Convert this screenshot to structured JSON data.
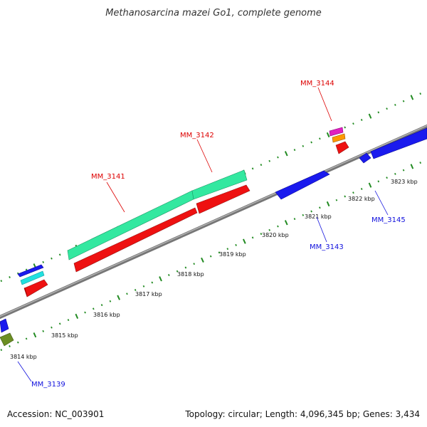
{
  "title": "Methanosarcina mazei Go1, complete genome",
  "footer": {
    "accession": "Accession: NC_003901",
    "summary": "Topology: circular; Length: 4,096,345 bp; Genes: 3,434"
  },
  "scale_labels": [
    "3814 kbp",
    "3815 kbp",
    "3816 kbp",
    "3817 kbp",
    "3818 kbp",
    "3819 kbp",
    "3820 kbp",
    "3821 kbp",
    "3822 kbp",
    "3823 kbp"
  ],
  "gene_labels": {
    "mm3139": "MM_3139",
    "mm3141": "MM_3141",
    "mm3142": "MM_3142",
    "mm3143": "MM_3143",
    "mm3144": "MM_3144",
    "mm3145": "MM_3145"
  },
  "colors": {
    "backbone": "#888888",
    "ticks": "#228b22",
    "forward_gene": "#ee1111",
    "reverse_gene": "#1a1aee",
    "feature_green": "#33e8a0",
    "feature_cyan": "#22e0e0",
    "feature_magenta": "#e020c0",
    "feature_orange": "#ff9900",
    "feature_olive": "#6b8e23",
    "label_forward": "#dd0000",
    "label_reverse": "#1010dd"
  }
}
